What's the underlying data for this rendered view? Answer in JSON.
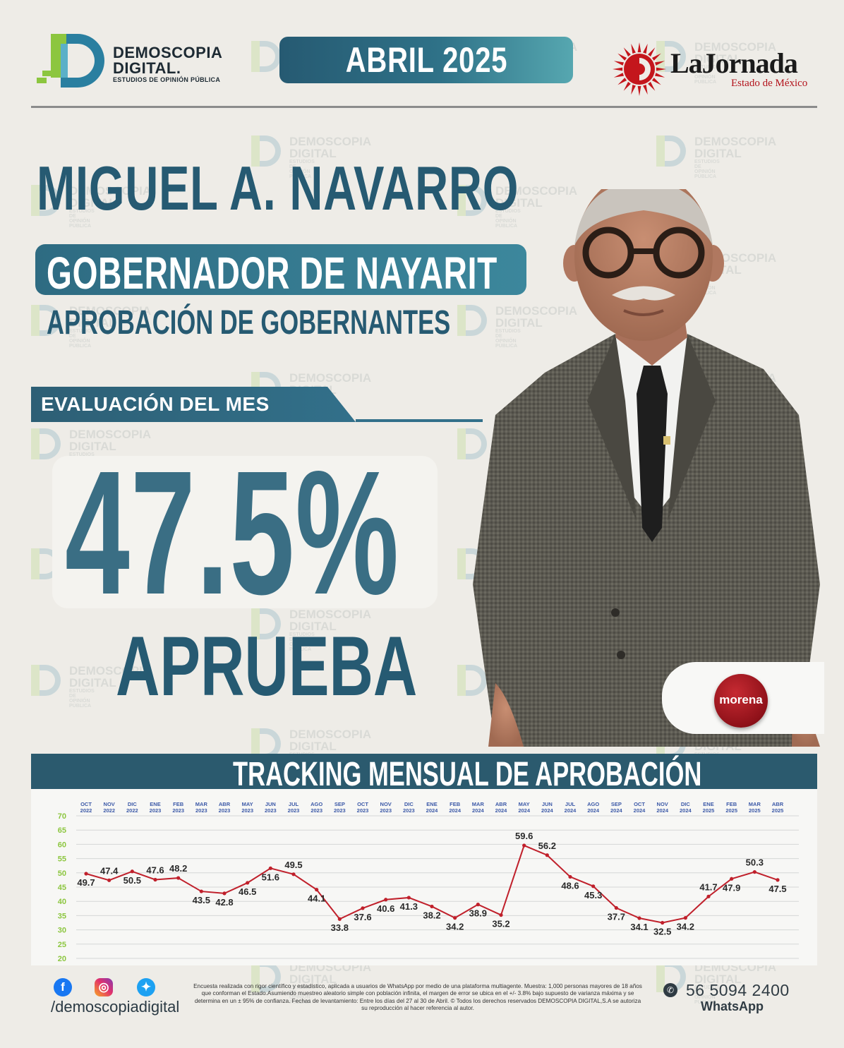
{
  "header": {
    "brand_line1": "DEMOSCOPIA",
    "brand_line2": "DIGITAL.",
    "brand_line3": "ESTUDIOS DE OPINIÓN PÚBLICA",
    "month": "ABRIL 2025",
    "partner_name": "LaJornada",
    "partner_sub": "Estado de México"
  },
  "subject": {
    "name": "MIGUEL A. NAVARRO",
    "role": "GOBERNADOR DE NAYARIT",
    "subtitle": "APROBACIÓN DE GOBERNANTES",
    "eval_label": "EVALUACIÓN DEL MES",
    "value_label": "47.5%",
    "approve_label": "APRUEBA",
    "party": "morena"
  },
  "watermark": {
    "line1": "DEMOSCOPIA",
    "line2": "DIGITAL",
    "line3": "ESTUDIOS DE OPINIÓN PÚBLICA"
  },
  "chart_data": {
    "type": "line",
    "title": "TRACKING MENSUAL DE APROBACIÓN",
    "x_months": [
      "OCT",
      "NOV",
      "DIC",
      "ENE",
      "FEB",
      "MAR",
      "ABR",
      "MAY",
      "JUN",
      "JUL",
      "AGO",
      "SEP",
      "OCT",
      "NOV",
      "DIC",
      "ENE",
      "FEB",
      "MAR",
      "ABR",
      "MAY",
      "JUN",
      "JUL",
      "AGO",
      "SEP",
      "OCT",
      "NOV",
      "DIC",
      "ENE",
      "FEB",
      "MAR",
      "ABR"
    ],
    "x_years": [
      "2022",
      "2022",
      "2022",
      "2023",
      "2023",
      "2023",
      "2023",
      "2023",
      "2023",
      "2023",
      "2023",
      "2023",
      "2023",
      "2023",
      "2023",
      "2024",
      "2024",
      "2024",
      "2024",
      "2024",
      "2024",
      "2024",
      "2024",
      "2024",
      "2024",
      "2024",
      "2024",
      "2025",
      "2025",
      "2025",
      "2025"
    ],
    "values": [
      49.7,
      47.4,
      50.5,
      47.6,
      48.2,
      43.5,
      42.8,
      46.5,
      51.6,
      49.5,
      44.1,
      33.8,
      37.6,
      40.6,
      41.3,
      38.2,
      34.2,
      38.9,
      35.2,
      59.6,
      56.2,
      48.6,
      45.3,
      37.7,
      34.1,
      32.5,
      34.2,
      41.7,
      47.9,
      50.3,
      47.5
    ],
    "labels": [
      "49.7",
      "47.4",
      "50.5",
      "47.6",
      "48.2",
      "43.5",
      "42.8",
      "46.5",
      "51.6",
      "49.5",
      "44.1",
      "33.8",
      "37.6",
      "40.6",
      "41.3",
      "38.2",
      "34.2",
      "38.9",
      "35.2",
      "59.6",
      "56.2",
      "48.6",
      "45.3",
      "37.7",
      "34.1",
      "32.5",
      "34.2",
      "41.7",
      "47.9",
      "50.3",
      "47.5"
    ],
    "label_side": [
      "below",
      "above",
      "below",
      "above",
      "above",
      "below",
      "below",
      "below",
      "below",
      "above",
      "below",
      "below",
      "below",
      "below",
      "below",
      "below",
      "below",
      "below",
      "below",
      "above",
      "above",
      "below",
      "below",
      "below",
      "below",
      "below",
      "below",
      "above",
      "below",
      "above",
      "below"
    ],
    "y_ticks": [
      "70",
      "65",
      "60",
      "55",
      "50",
      "45",
      "40",
      "35",
      "30",
      "25",
      "20"
    ],
    "ylim": [
      20,
      70
    ],
    "grid": true,
    "line_color": "#c0202b"
  },
  "footer": {
    "handle": "/demoscopiadigital",
    "disclaimer": "Encuesta realizada con rigor científico y estadístico, aplicada a usuarios de WhatsApp por medio de una plataforma multiagente. Muestra: 1,000 personas mayores de 18 años que conforman el Estado.Asumiendo muestreo aleatorio simple con población infinita, el margen de error se ubica en el +/- 3.8% bajo supuesto de varianza máxima y se determina en un ± 95% de confianza. Fechas de levantamiento: Entre los días del 27 al 30 de Abril. © Todos los derechos reservados DEMOSCOPIA DIGITAL,S.A se autoriza su reproducción al hacer referencia al autor.",
    "phone": "56 5094 2400",
    "phone_label": "WhatsApp"
  }
}
